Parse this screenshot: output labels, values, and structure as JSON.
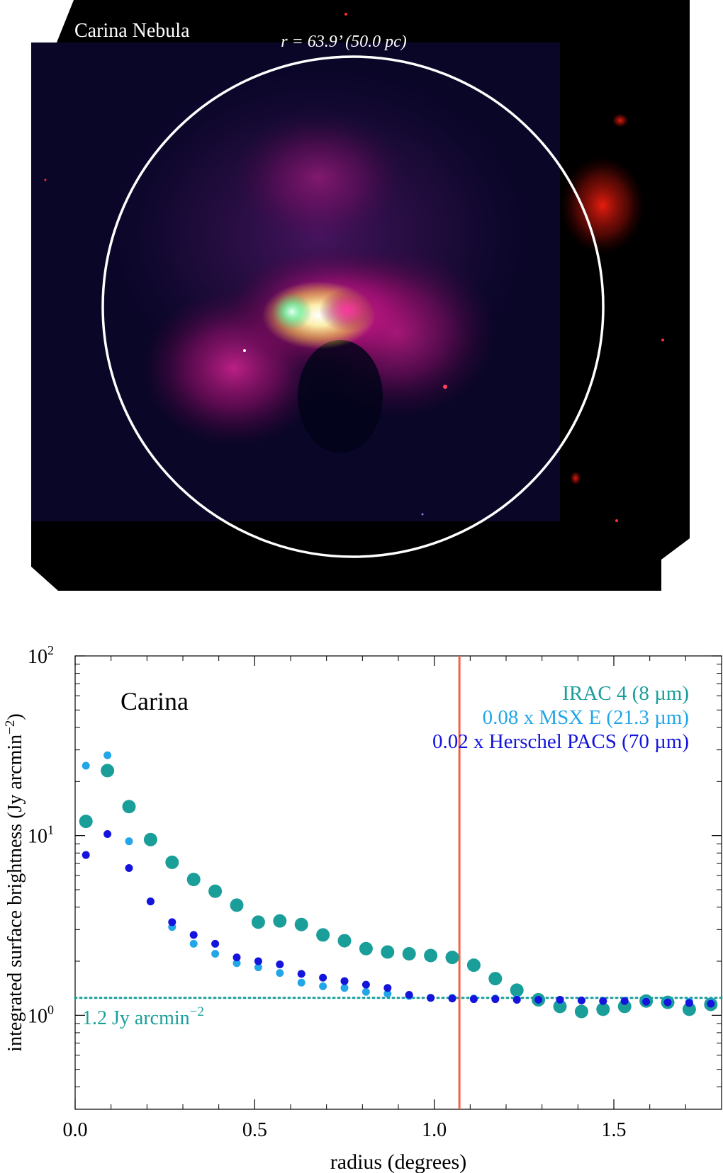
{
  "image_panel": {
    "title": "Carina Nebula",
    "circle_label": "r = 63.9’ (50.0 pc)"
  },
  "chart_data": {
    "type": "scatter",
    "title": "Carina",
    "xlabel": "radius (degrees)",
    "ylabel": "integrated surface brightness (Jy arcmin",
    "ylabel_sup": "−2",
    "ylabel_close": ")",
    "xlim": [
      0.0,
      1.8
    ],
    "ylim": [
      0.3,
      100
    ],
    "yscale": "log",
    "grid": false,
    "x_ticks": [
      "0.0",
      "0.5",
      "1.0",
      "1.5"
    ],
    "x_tick_values": [
      0.0,
      0.5,
      1.0,
      1.5
    ],
    "y_ticks": [
      {
        "base": "10",
        "exp": "0",
        "value": 1
      },
      {
        "base": "10",
        "exp": "1",
        "value": 10
      },
      {
        "base": "10",
        "exp": "2",
        "value": 100
      }
    ],
    "legend_placement": "top-right",
    "vertical_line": {
      "x": 1.07,
      "color": "#f0644b"
    },
    "horizontal_line": {
      "y": 1.25,
      "color": "#1a9e9a",
      "style": "dotted"
    },
    "annotation": {
      "text": "1.2 Jy arcmin",
      "sup": "−2",
      "color": "#1a9e9a"
    },
    "series": [
      {
        "name": "IRAC 4 (8 µm)",
        "color": "#1a9e9a",
        "marker": "large",
        "x": [
          0.03,
          0.09,
          0.15,
          0.21,
          0.27,
          0.33,
          0.39,
          0.45,
          0.51,
          0.57,
          0.63,
          0.69,
          0.75,
          0.81,
          0.87,
          0.93,
          0.99,
          1.05,
          1.11,
          1.17,
          1.23,
          1.29,
          1.35,
          1.41,
          1.47,
          1.53,
          1.59,
          1.65,
          1.71,
          1.77
        ],
        "y": [
          12.0,
          23.0,
          14.5,
          9.5,
          7.1,
          5.7,
          4.9,
          4.1,
          3.3,
          3.35,
          3.2,
          2.8,
          2.6,
          2.35,
          2.25,
          2.2,
          2.15,
          2.1,
          1.9,
          1.6,
          1.38,
          1.22,
          1.12,
          1.05,
          1.08,
          1.12,
          1.2,
          1.18,
          1.08,
          1.15
        ]
      },
      {
        "name": "0.08 x MSX E (21.3 µm)",
        "color": "#23a6e8",
        "marker": "small",
        "x": [
          0.03,
          0.09,
          0.15,
          0.21,
          0.27,
          0.33,
          0.39,
          0.45,
          0.51,
          0.57,
          0.63,
          0.69,
          0.75,
          0.81,
          0.87,
          0.93,
          0.99,
          1.05,
          1.11,
          1.17,
          1.23,
          1.29,
          1.35,
          1.41,
          1.47,
          1.53,
          1.59,
          1.65,
          1.71,
          1.77
        ],
        "y": [
          24.5,
          28.0,
          9.3,
          4.3,
          3.1,
          2.5,
          2.2,
          1.95,
          1.85,
          1.72,
          1.52,
          1.45,
          1.42,
          1.35,
          1.32,
          1.28,
          1.25,
          1.25,
          1.24,
          1.24,
          1.23,
          1.22,
          1.21,
          1.21,
          1.2,
          1.2,
          1.2,
          1.19,
          1.19,
          1.18
        ]
      },
      {
        "name": "0.02 x Herschel PACS (70 µm)",
        "color": "#1414dc",
        "marker": "small",
        "x": [
          0.03,
          0.09,
          0.15,
          0.21,
          0.27,
          0.33,
          0.39,
          0.45,
          0.51,
          0.57,
          0.63,
          0.69,
          0.75,
          0.81,
          0.87,
          0.93,
          0.99,
          1.05,
          1.11,
          1.17,
          1.23,
          1.29,
          1.35,
          1.41,
          1.47,
          1.53,
          1.59,
          1.65,
          1.71,
          1.77
        ],
        "y": [
          7.8,
          10.2,
          6.6,
          4.3,
          3.3,
          2.8,
          2.5,
          2.1,
          2.0,
          1.92,
          1.7,
          1.62,
          1.55,
          1.48,
          1.42,
          1.3,
          1.25,
          1.24,
          1.23,
          1.23,
          1.22,
          1.22,
          1.22,
          1.21,
          1.2,
          1.2,
          1.19,
          1.18,
          1.17,
          1.16
        ]
      }
    ]
  }
}
